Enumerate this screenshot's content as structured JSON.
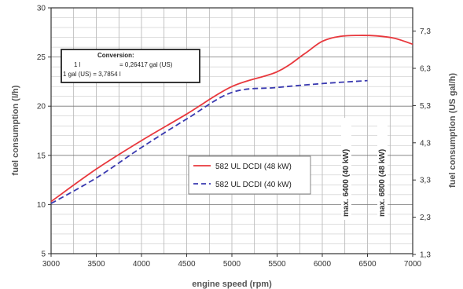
{
  "chart_data": {
    "type": "line",
    "title": "",
    "xlabel": "engine speed (rpm)",
    "ylabel": "fuel consumption (l/h)",
    "y2label": "fuel consumption (US gal/h)",
    "xlim": [
      3000,
      7000
    ],
    "ylim": [
      5,
      30
    ],
    "x_ticks": [
      "3000",
      "3500",
      "4000",
      "4500",
      "5000",
      "5500",
      "6000",
      "6500",
      "7000"
    ],
    "y_ticks": [
      "5",
      "10",
      "15",
      "20",
      "25",
      "30"
    ],
    "y2_ticks": [
      "1,3",
      "2,3",
      "3,3",
      "4,3",
      "5,3",
      "6,3",
      "7,3"
    ],
    "grid": true,
    "legend_position": "center-right",
    "series": [
      {
        "name": "582 UL DCDI (48 kW)",
        "color": "#e8383d",
        "style": "solid",
        "x": [
          3000,
          3500,
          4000,
          4500,
          5000,
          5500,
          5800,
          6000,
          6200,
          6400,
          6600,
          6800,
          7000
        ],
        "y": [
          10.3,
          13.6,
          16.5,
          19.2,
          22.0,
          23.5,
          25.3,
          26.6,
          27.1,
          27.2,
          27.15,
          26.9,
          26.3
        ]
      },
      {
        "name": "582 UL DCDI (40 kW)",
        "color": "#3a3ab0",
        "style": "dashed",
        "x": [
          3000,
          3500,
          4000,
          4500,
          5000,
          5500,
          6000,
          6500
        ],
        "y": [
          10.1,
          12.7,
          15.8,
          18.7,
          21.4,
          21.9,
          22.3,
          22.6
        ]
      }
    ],
    "annotations": [
      {
        "text": "max. 6400 (40 kW)",
        "x": 6400
      },
      {
        "text": "max. 6800 (48 kW)",
        "x": 6800
      }
    ]
  },
  "conversion": {
    "title": "Conversion:",
    "row1_left": "1 l",
    "row1_right": "=  0,26417 gal (US)",
    "row2_left": "1 gal (US)  =  3,7854 l"
  }
}
